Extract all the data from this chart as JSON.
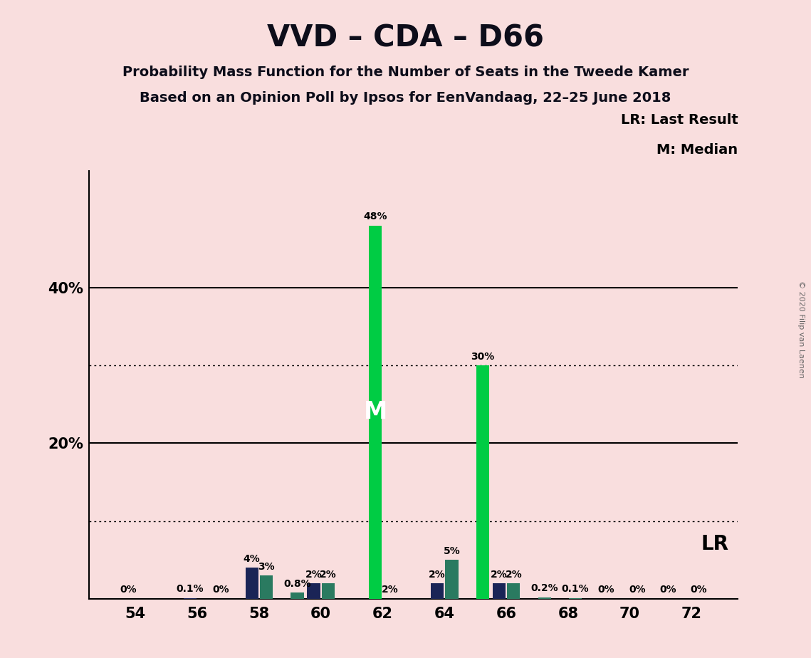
{
  "title": "VVD – CDA – D66",
  "subtitle1": "Probability Mass Function for the Number of Seats in the Tweede Kamer",
  "subtitle2": "Based on an Opinion Poll by Ipsos for EenVandaag, 22–25 June 2018",
  "copyright": "© 2020 Filip van Laenen",
  "legend_lr": "LR: Last Result",
  "legend_m": "M: Median",
  "lr_label": "LR",
  "m_label": "M",
  "background_color": "#f9dede",
  "bar_color_dark": "#1a2456",
  "bar_color_teal": "#2a7a60",
  "bar_color_green": "#00cc44",
  "seats": [
    54,
    55,
    56,
    57,
    58,
    59,
    60,
    61,
    62,
    63,
    64,
    65,
    66,
    67,
    68,
    69,
    70,
    71,
    72
  ],
  "series1_pct": [
    0.0,
    0.0,
    0.1,
    0.0,
    4.0,
    0.0,
    2.0,
    0.0,
    48.0,
    0.0,
    2.0,
    0.0,
    2.0,
    0.0,
    0.0,
    0.0,
    0.0,
    0.0,
    0.0
  ],
  "series2_pct": [
    0.0,
    0.0,
    0.0,
    0.0,
    3.0,
    0.8,
    2.0,
    0.0,
    0.0,
    0.0,
    5.0,
    30.0,
    2.0,
    0.2,
    0.1,
    0.0,
    0.0,
    0.0,
    0.0
  ],
  "median_seat": 62,
  "lr_seat": 65,
  "bar_width": 0.42,
  "bar_gap": 0.05,
  "xlim": [
    52.5,
    73.5
  ],
  "ylim": [
    0,
    55
  ],
  "xtick_seats": [
    54,
    56,
    58,
    60,
    62,
    64,
    66,
    68,
    70,
    72
  ],
  "ytick_positions": [
    20,
    40
  ],
  "ytick_labels": [
    "20%",
    "40%"
  ],
  "dotted_lines": [
    10,
    30
  ],
  "solid_lines": [
    20,
    40
  ],
  "label_fontsize": 10,
  "tick_fontsize": 15,
  "title_fontsize": 30,
  "subtitle_fontsize": 14,
  "legend_fontsize": 14,
  "lr_anno_fontsize": 20,
  "m_label_fontsize": 24
}
